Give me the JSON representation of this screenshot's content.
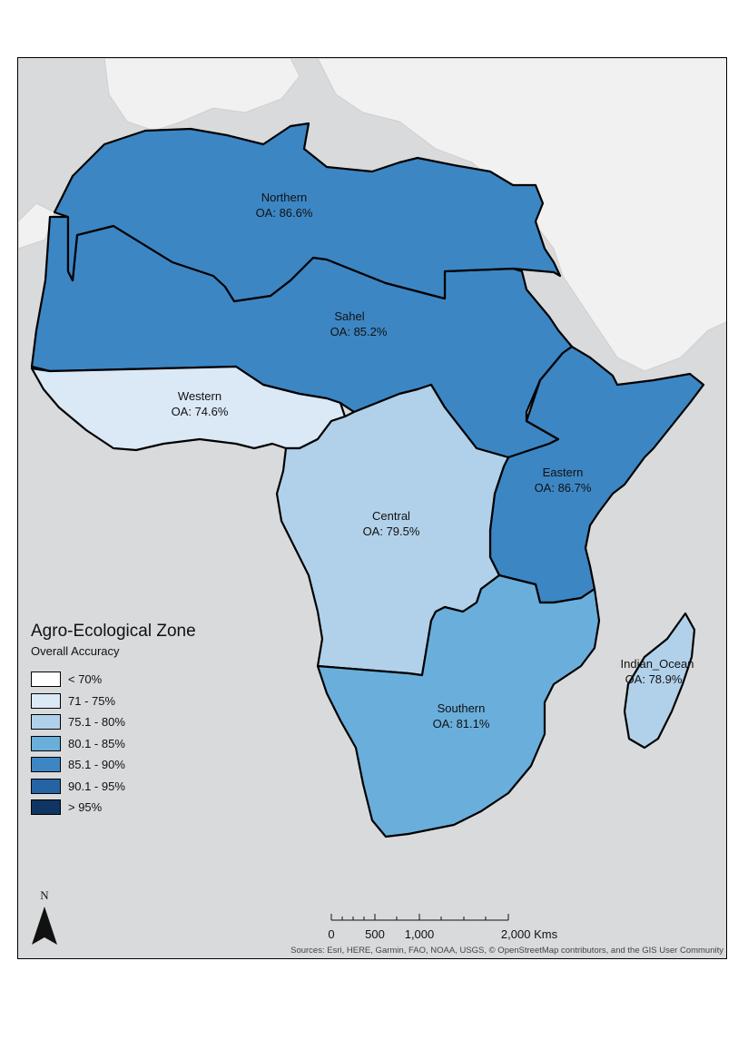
{
  "legend": {
    "title": "Agro-Ecological Zone",
    "subtitle": "Overall Accuracy",
    "classes": [
      {
        "label": "< 70%",
        "color": "#ffffff"
      },
      {
        "label": "71 - 75%",
        "color": "#dbe8f6"
      },
      {
        "label": "75.1 - 80%",
        "color": "#b1d1ea"
      },
      {
        "label": "80.1 - 85%",
        "color": "#6aaedb"
      },
      {
        "label": "85.1 - 90%",
        "color": "#3c86c4"
      },
      {
        "label": "90.1 - 95%",
        "color": "#2464a5"
      },
      {
        "label": "> 95%",
        "color": "#0f3563"
      }
    ]
  },
  "zones": [
    {
      "name": "Northern",
      "accuracy": "OA: 86.6%",
      "color": "#3c86c4"
    },
    {
      "name": "Sahel",
      "accuracy": "OA: 85.2%",
      "color": "#3c86c4"
    },
    {
      "name": "Western",
      "accuracy": "OA: 74.6%",
      "color": "#dbe8f6"
    },
    {
      "name": "Eastern",
      "accuracy": "OA: 86.7%",
      "color": "#3c86c4"
    },
    {
      "name": "Central",
      "accuracy": "OA: 79.5%",
      "color": "#b1d1ea"
    },
    {
      "name": "Southern",
      "accuracy": "OA: 81.1%",
      "color": "#6aaedb"
    },
    {
      "name": "Indian_Ocean",
      "accuracy": "OA: 78.9%",
      "color": "#b1d1ea"
    }
  ],
  "north_arrow": {
    "letter": "N"
  },
  "scalebar": {
    "ticks": [
      "0",
      "500",
      "1,000",
      "2,000 Kms"
    ]
  },
  "attribution": "Sources: Esri, HERE, Garmin, FAO, NOAA, USGS, © OpenStreetMap contributors, and the GIS User Community",
  "basemap_colors": {
    "water": "#d9dadb",
    "land": "#f1f1f1"
  }
}
